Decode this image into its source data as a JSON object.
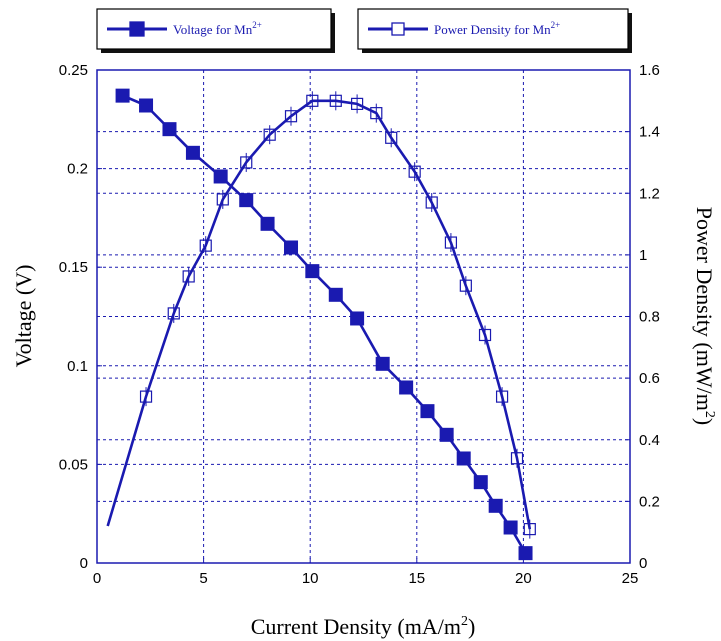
{
  "chart_data": {
    "type": "line",
    "title": "",
    "xlabel": "Current Density (mA/m",
    "xlabel_sup": "2",
    "xlabel_end": ")",
    "ylabel": "Voltage (V)",
    "y2label": "Power Density (mW/m",
    "y2label_sup": "2",
    "y2label_end": ")",
    "xlim": [
      0,
      25
    ],
    "ylim": [
      0,
      0.25
    ],
    "y2lim": [
      0,
      1.6
    ],
    "xticks": [
      "0",
      "5",
      "10",
      "15",
      "20",
      "25"
    ],
    "yticks": [
      "0",
      "0.05",
      "0.1",
      "0.15",
      "0.2",
      "0.25"
    ],
    "y2ticks": [
      "0",
      "0.2",
      "0.4",
      "0.6",
      "0.8",
      "1",
      "1.2",
      "1.4",
      "1.6"
    ],
    "grid": true,
    "legend_position": "top",
    "series": [
      {
        "name": "Voltage for Mn",
        "name_sup": "2+",
        "axis": "left",
        "marker": "filled-square",
        "color": "#1a1ab0",
        "x": [
          1.2,
          2.3,
          3.4,
          4.5,
          5.8,
          7.0,
          8.0,
          9.1,
          10.1,
          11.2,
          12.2,
          13.4,
          14.5,
          15.5,
          16.4,
          17.2,
          18.0,
          18.7,
          19.4,
          20.1
        ],
        "y": [
          0.237,
          0.232,
          0.22,
          0.208,
          0.196,
          0.184,
          0.172,
          0.16,
          0.148,
          0.136,
          0.124,
          0.101,
          0.089,
          0.077,
          0.065,
          0.053,
          0.041,
          0.029,
          0.018,
          0.005
        ]
      },
      {
        "name": "Power Density for Mn",
        "name_sup": "2+",
        "axis": "right",
        "marker": "open-square",
        "color": "#1a1ab0",
        "x": [
          0.5,
          2.3,
          3.6,
          4.3,
          5.1,
          5.9,
          7.0,
          8.1,
          9.1,
          10.1,
          11.2,
          12.2,
          13.1,
          13.8,
          14.9,
          15.7,
          16.6,
          17.3,
          18.2,
          19.0,
          19.7,
          20.3
        ],
        "y": [
          0.12,
          0.54,
          0.81,
          0.93,
          1.03,
          1.18,
          1.3,
          1.39,
          1.45,
          1.5,
          1.5,
          1.49,
          1.46,
          1.38,
          1.27,
          1.17,
          1.04,
          0.9,
          0.74,
          0.54,
          0.34,
          0.11
        ]
      }
    ]
  }
}
